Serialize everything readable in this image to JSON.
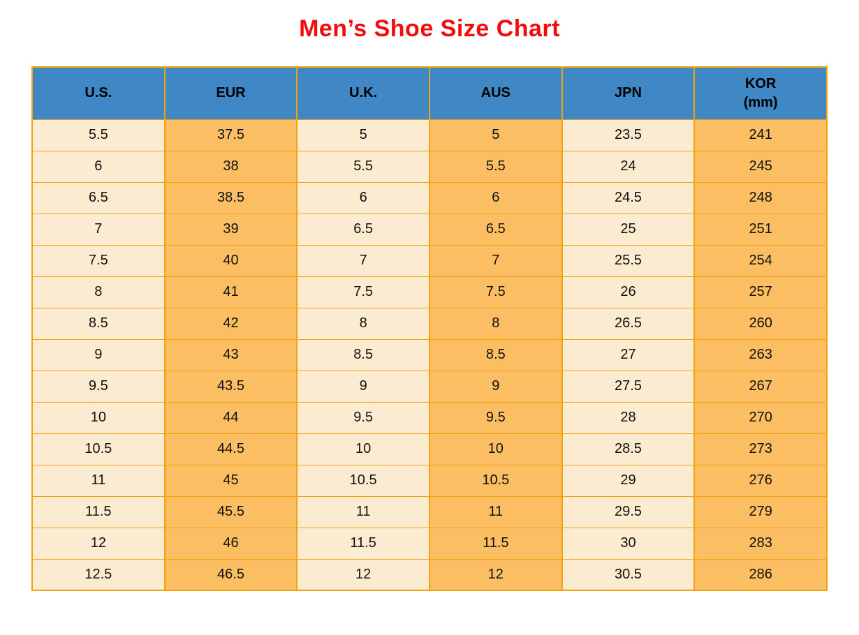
{
  "title": "Men’s Shoe Size Chart",
  "colors": {
    "title": "#F30C0C",
    "header_bg": "#3F88C5",
    "header_text": "#000000",
    "cell_text": "#111111",
    "column_light": "#FBEBD0",
    "column_orange": "#FCBE63",
    "grid_border": "#F2A20C",
    "page_bg": "#FFFFFF"
  },
  "table": {
    "columns": [
      {
        "key": "us",
        "label": "U.S."
      },
      {
        "key": "eur",
        "label": "EUR"
      },
      {
        "key": "uk",
        "label": "U.K."
      },
      {
        "key": "aus",
        "label": "AUS"
      },
      {
        "key": "jpn",
        "label": "JPN"
      },
      {
        "key": "kor",
        "label": "KOR",
        "label_line2": "(mm)"
      }
    ],
    "rows": [
      [
        "5.5",
        "37.5",
        "5",
        "5",
        "23.5",
        "241"
      ],
      [
        "6",
        "38",
        "5.5",
        "5.5",
        "24",
        "245"
      ],
      [
        "6.5",
        "38.5",
        "6",
        "6",
        "24.5",
        "248"
      ],
      [
        "7",
        "39",
        "6.5",
        "6.5",
        "25",
        "251"
      ],
      [
        "7.5",
        "40",
        "7",
        "7",
        "25.5",
        "254"
      ],
      [
        "8",
        "41",
        "7.5",
        "7.5",
        "26",
        "257"
      ],
      [
        "8.5",
        "42",
        "8",
        "8",
        "26.5",
        "260"
      ],
      [
        "9",
        "43",
        "8.5",
        "8.5",
        "27",
        "263"
      ],
      [
        "9.5",
        "43.5",
        "9",
        "9",
        "27.5",
        "267"
      ],
      [
        "10",
        "44",
        "9.5",
        "9.5",
        "28",
        "270"
      ],
      [
        "10.5",
        "44.5",
        "10",
        "10",
        "28.5",
        "273"
      ],
      [
        "11",
        "45",
        "10.5",
        "10.5",
        "29",
        "276"
      ],
      [
        "11.5",
        "45.5",
        "11",
        "11",
        "29.5",
        "279"
      ],
      [
        "12",
        "46",
        "11.5",
        "11.5",
        "30",
        "283"
      ],
      [
        "12.5",
        "46.5",
        "12",
        "12",
        "30.5",
        "286"
      ]
    ]
  },
  "chart_data": {
    "type": "table",
    "title": "Men’s Shoe Size Chart",
    "columns": [
      "U.S.",
      "EUR",
      "U.K.",
      "AUS",
      "JPN",
      "KOR (mm)"
    ],
    "rows": [
      [
        5.5,
        37.5,
        5,
        5,
        23.5,
        241
      ],
      [
        6,
        38,
        5.5,
        5.5,
        24,
        245
      ],
      [
        6.5,
        38.5,
        6,
        6,
        24.5,
        248
      ],
      [
        7,
        39,
        6.5,
        6.5,
        25,
        251
      ],
      [
        7.5,
        40,
        7,
        7,
        25.5,
        254
      ],
      [
        8,
        41,
        7.5,
        7.5,
        26,
        257
      ],
      [
        8.5,
        42,
        8,
        8,
        26.5,
        260
      ],
      [
        9,
        43,
        8.5,
        8.5,
        27,
        263
      ],
      [
        9.5,
        43.5,
        9,
        9,
        27.5,
        267
      ],
      [
        10,
        44,
        9.5,
        9.5,
        28,
        270
      ],
      [
        10.5,
        44.5,
        10,
        10,
        28.5,
        273
      ],
      [
        11,
        45,
        10.5,
        10.5,
        29,
        276
      ],
      [
        11.5,
        45.5,
        11,
        11,
        29.5,
        279
      ],
      [
        12,
        46,
        11.5,
        11.5,
        30,
        283
      ],
      [
        12.5,
        46.5,
        12,
        12,
        30.5,
        286
      ]
    ],
    "layout_hints": {
      "header_fill": "#3F88C5",
      "alternating_column_fills": [
        "#FBEBD0",
        "#FCBE63"
      ],
      "grid": true
    }
  }
}
